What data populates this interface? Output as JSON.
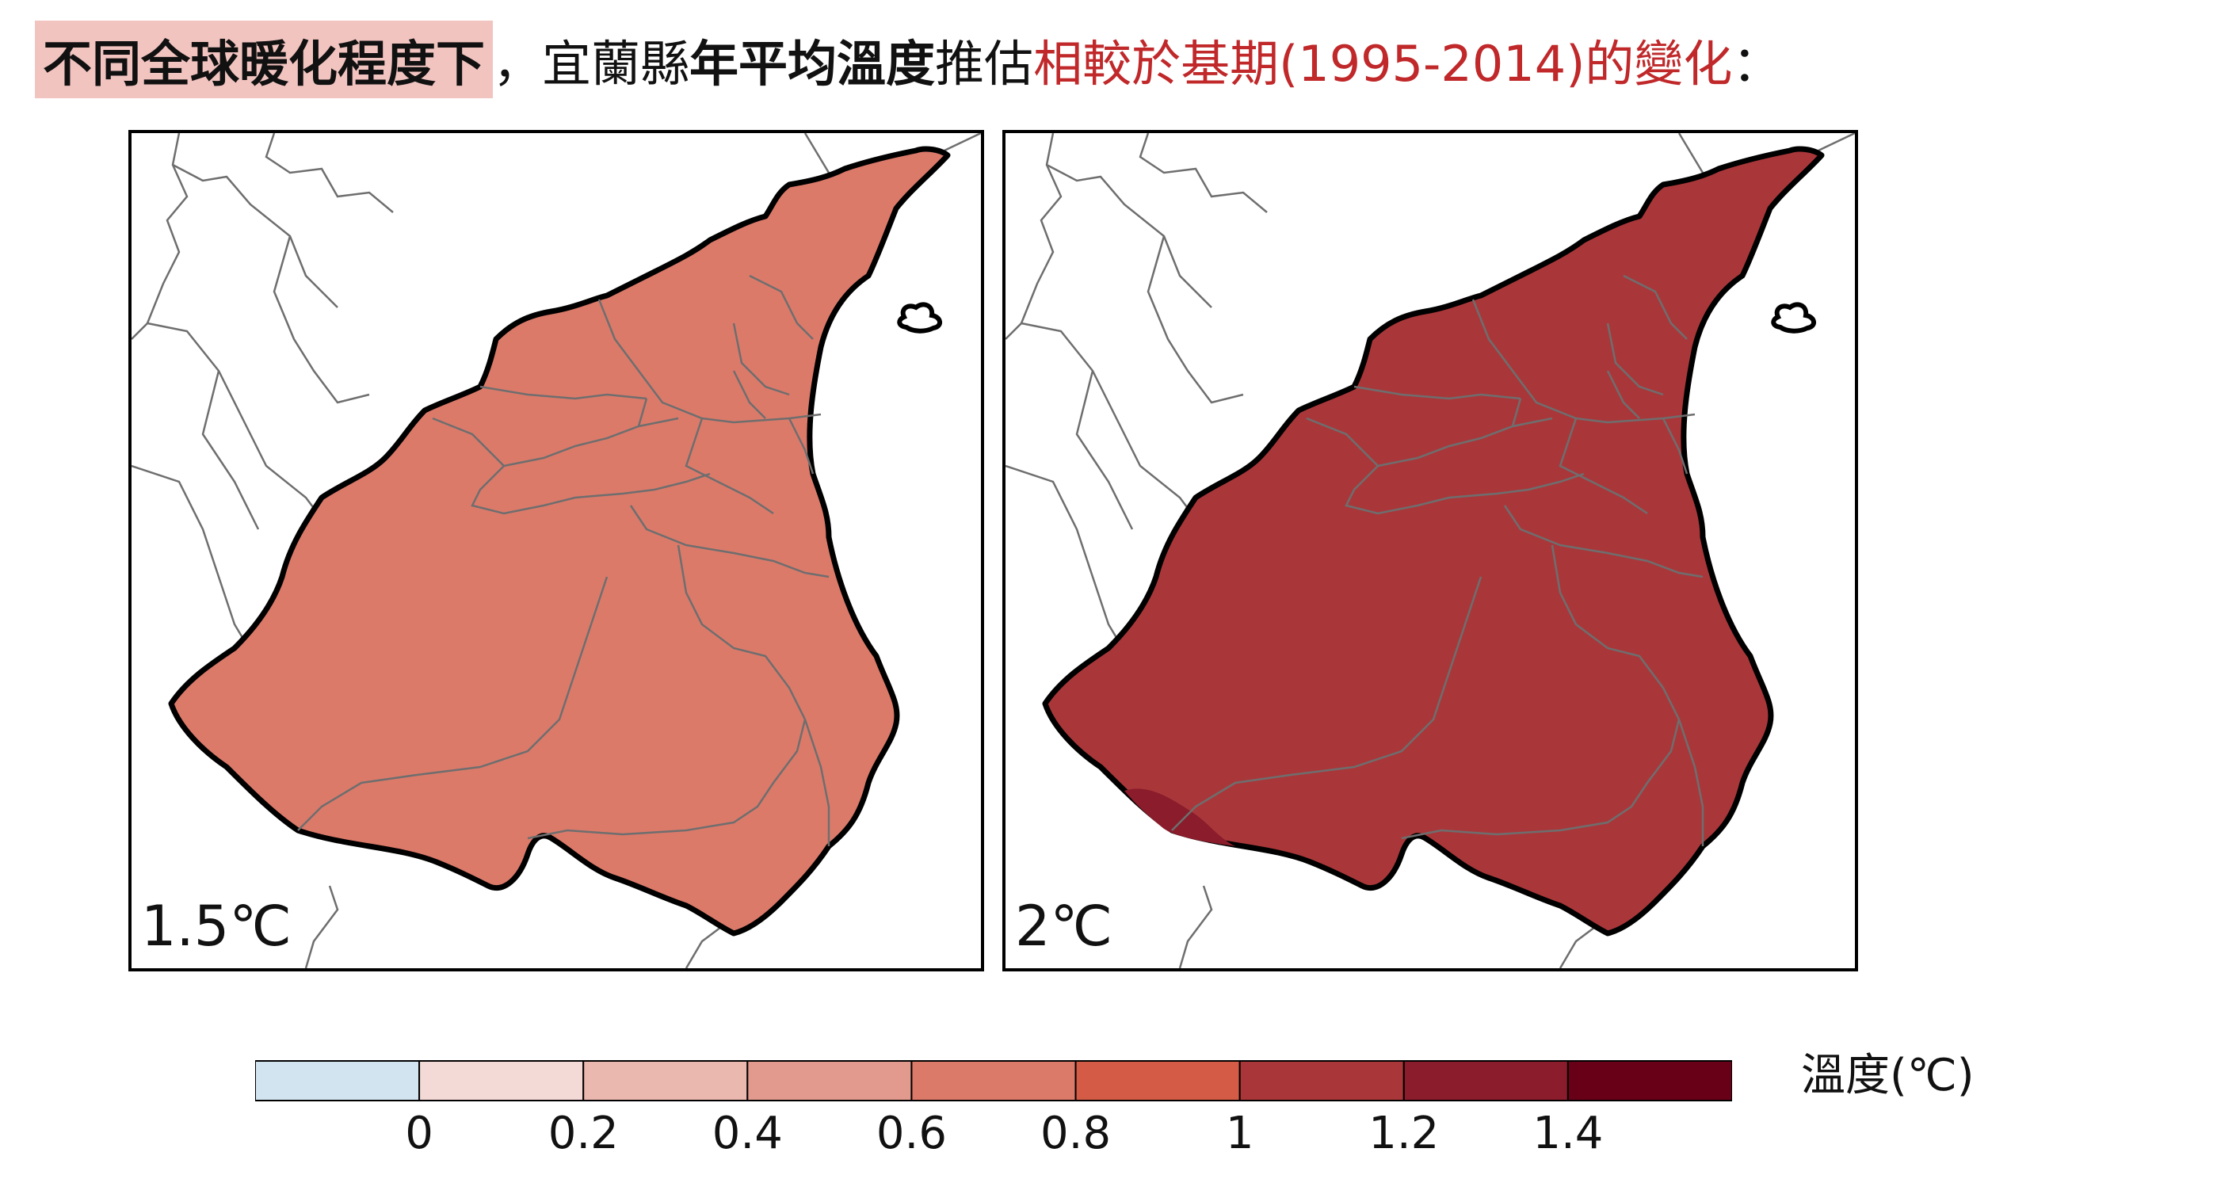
{
  "title": {
    "highlight": "不同全球暖化程度下",
    "part1": "，宜蘭縣",
    "bold": "年平均溫度",
    "part2": "推估",
    "red": "相較於基期(1995-2014)的變化",
    "end": "："
  },
  "panels": [
    {
      "label": "1.5℃",
      "value_band": "0.6-0.8",
      "fill": "#dc7a6a"
    },
    {
      "label": "2℃",
      "value_band": "1-1.2",
      "fill": "#a9373a",
      "minor_fill": "#8a1c2b"
    }
  ],
  "legend": {
    "title": "溫度(℃)",
    "colors": [
      "#d3e4f1",
      "#f4dad7",
      "#ebb8b0",
      "#e39a8e",
      "#dc7a6a",
      "#d45b45",
      "#a9373a",
      "#8a1c2b",
      "#680018"
    ],
    "tick_labels": [
      "0",
      "0.2",
      "0.4",
      "0.6",
      "0.8",
      "1",
      "1.2",
      "1.4"
    ]
  },
  "colors": {
    "title_highlight": "#f2c4c0",
    "title_red": "#c0282a",
    "boundary": "#6e6e6e"
  }
}
